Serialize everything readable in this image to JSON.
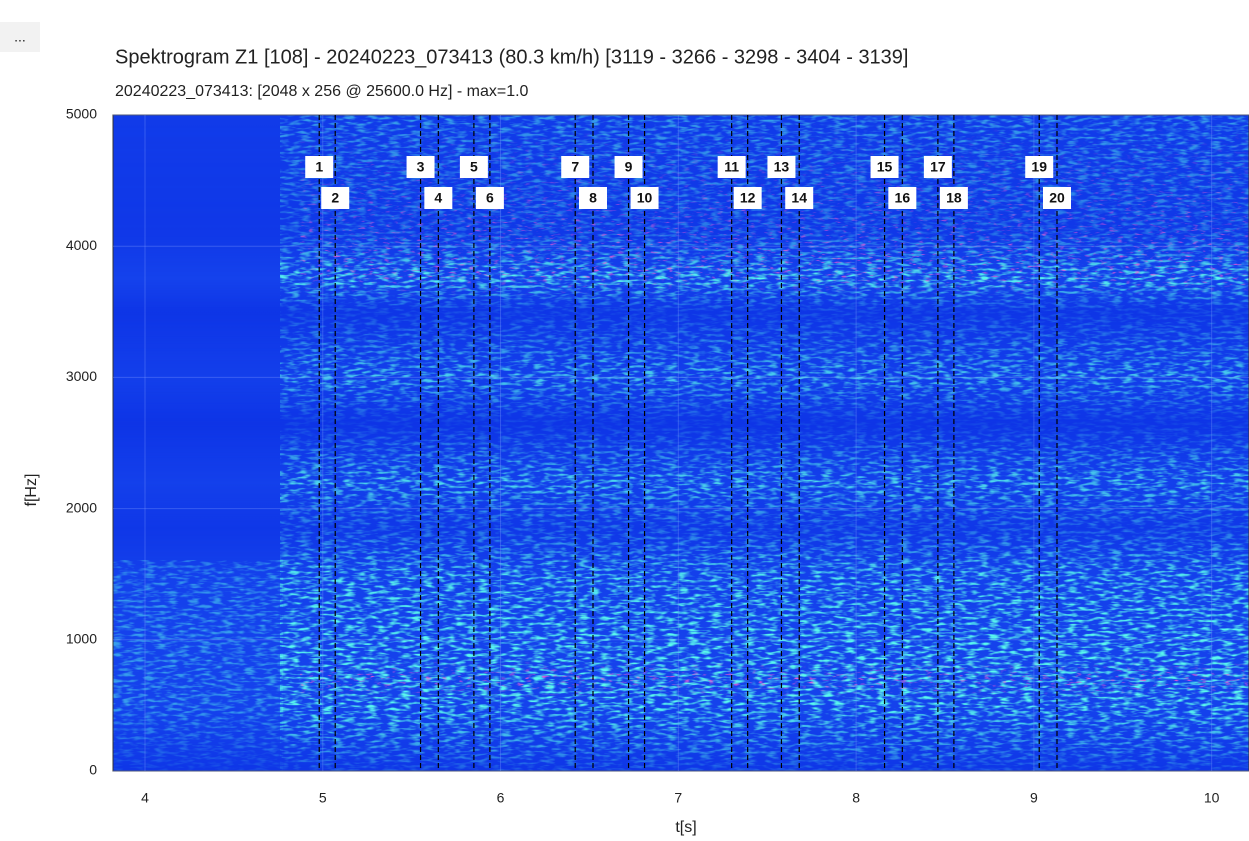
{
  "menu_button": "...",
  "chart_data": {
    "type": "spectrogram",
    "title": "Spektrogram Z1 [108] - 20240223_073413 (80.3 km/h) [3119 - 3266 - 3298 - 3404 - 3139]",
    "subtitle": "20240223_073413: [2048 x 256 @ 25600.0 Hz] - max=1.0",
    "xlabel": "t[s]",
    "ylabel": "f[Hz]",
    "xlim": [
      3.82,
      10.21
    ],
    "ylim": [
      0,
      5000
    ],
    "xticks": [
      4,
      5,
      6,
      7,
      8,
      9,
      10
    ],
    "yticks": [
      0,
      1000,
      2000,
      3000,
      4000,
      5000
    ],
    "markers": {
      "labels": [
        "1",
        "2",
        "3",
        "4",
        "5",
        "6",
        "7",
        "8",
        "9",
        "10",
        "11",
        "12",
        "13",
        "14",
        "15",
        "16",
        "17",
        "18",
        "19",
        "20"
      ],
      "x": [
        4.98,
        5.07,
        5.55,
        5.65,
        5.85,
        5.94,
        6.42,
        6.52,
        6.72,
        6.81,
        7.3,
        7.39,
        7.58,
        7.68,
        8.16,
        8.26,
        8.46,
        8.55,
        9.03,
        9.13
      ],
      "color": "#000000"
    }
  }
}
